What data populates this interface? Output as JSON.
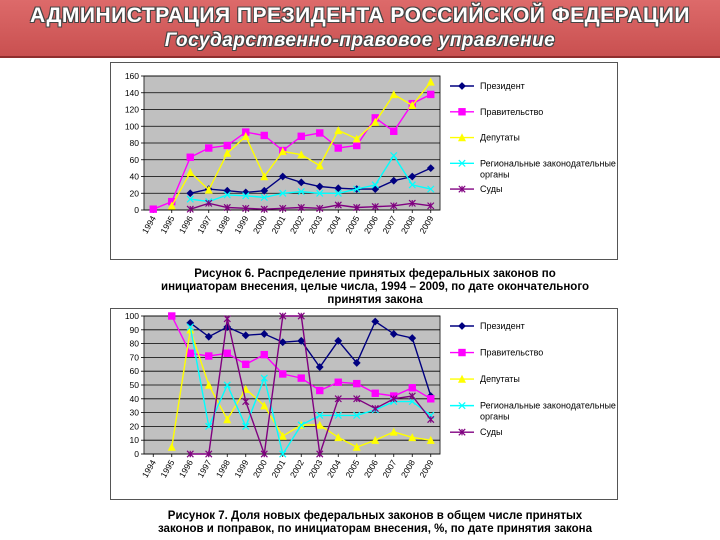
{
  "header": {
    "title": "АДМИНИСТРАЦИЯ ПРЕЗИДЕНТА РОССИЙСКОЙ ФЕДЕРАЦИИ",
    "subtitle": "Государственно-правовое управление"
  },
  "captions": {
    "fig6_line1": "Рисунок 6. Распределение принятых федеральных законов по",
    "fig6_line2": "инициаторам внесения, целые числа, 1994 – 2009, по дате окончательного",
    "fig6_line3": "принятия закона",
    "fig7_line1": "Рисунок 7. Доля новых федеральных законов в общем числе принятых",
    "fig7_line2": "законов и поправок, по инициаторам внесения, %, по дате принятия закона"
  },
  "colors": {
    "plot_bg": "#c0c0c0",
    "president": "#000080",
    "government": "#ff00ff",
    "deputies": "#ffff00",
    "regional": "#00ffff",
    "courts": "#800080"
  },
  "chart_data": [
    {
      "type": "line",
      "grid": true,
      "legend_position": "right",
      "x": [
        "1994",
        "1995",
        "1996",
        "1997",
        "1998",
        "1999",
        "2000",
        "2001",
        "2002",
        "2003",
        "2004",
        "2005",
        "2006",
        "2007",
        "2008",
        "2009"
      ],
      "ylim": [
        0,
        160
      ],
      "yticks": [
        "0",
        "20",
        "40",
        "60",
        "80",
        "100",
        "120",
        "140",
        "160"
      ],
      "series": [
        {
          "name": "Президент",
          "color_key": "president",
          "marker": "diamond",
          "values": [
            null,
            null,
            20,
            25,
            23,
            21,
            23,
            40,
            33,
            28,
            26,
            25,
            25,
            35,
            40,
            50
          ]
        },
        {
          "name": "Правительство",
          "color_key": "government",
          "marker": "square",
          "values": [
            1,
            10,
            63,
            74,
            77,
            93,
            89,
            71,
            88,
            92,
            74,
            77,
            110,
            94,
            127,
            138
          ]
        },
        {
          "name": "Депутаты",
          "color_key": "deputies",
          "marker": "triangle",
          "values": [
            null,
            5,
            45,
            24,
            68,
            88,
            40,
            70,
            66,
            53,
            95,
            85,
            105,
            138,
            125,
            153
          ]
        },
        {
          "name": "Региональные законодательные органы",
          "color_key": "regional",
          "marker": "x",
          "values": [
            null,
            null,
            13,
            10,
            18,
            17,
            15,
            20,
            22,
            20,
            20,
            25,
            30,
            65,
            30,
            25
          ]
        },
        {
          "name": "Суды",
          "color_key": "courts",
          "marker": "star",
          "values": [
            null,
            null,
            1,
            8,
            3,
            2,
            1,
            2,
            3,
            2,
            6,
            3,
            4,
            5,
            8,
            5
          ]
        }
      ]
    },
    {
      "type": "line",
      "grid": true,
      "legend_position": "right",
      "x": [
        "1994",
        "1995",
        "1996",
        "1997",
        "1998",
        "1999",
        "2000",
        "2001",
        "2002",
        "2003",
        "2004",
        "2005",
        "2006",
        "2007",
        "2008",
        "2009"
      ],
      "ylim": [
        0,
        100
      ],
      "yticks": [
        "0",
        "10",
        "20",
        "30",
        "40",
        "50",
        "60",
        "70",
        "80",
        "90",
        "100"
      ],
      "series": [
        {
          "name": "Президент",
          "color_key": "president",
          "marker": "diamond",
          "values": [
            null,
            null,
            95,
            85,
            92,
            86,
            87,
            81,
            82,
            63,
            82,
            66,
            96,
            87,
            84,
            42
          ]
        },
        {
          "name": "Правительство",
          "color_key": "government",
          "marker": "square",
          "values": [
            null,
            100,
            73,
            71,
            73,
            65,
            72,
            58,
            55,
            46,
            52,
            51,
            44,
            42,
            48,
            40
          ]
        },
        {
          "name": "Депутаты",
          "color_key": "deputies",
          "marker": "triangle",
          "values": [
            null,
            5,
            90,
            50,
            25,
            47,
            35,
            13,
            21,
            21,
            12,
            5,
            10,
            16,
            12,
            10
          ]
        },
        {
          "name": "Региональные законодательные органы",
          "color_key": "regional",
          "marker": "x",
          "values": [
            null,
            null,
            92,
            20,
            50,
            20,
            55,
            0,
            21,
            28,
            28,
            28,
            32,
            38,
            38,
            28
          ]
        },
        {
          "name": "Суды",
          "color_key": "courts",
          "marker": "star",
          "values": [
            null,
            null,
            0,
            0,
            98,
            38,
            0,
            100,
            100,
            0,
            40,
            40,
            33,
            40,
            42,
            25
          ]
        }
      ]
    }
  ]
}
